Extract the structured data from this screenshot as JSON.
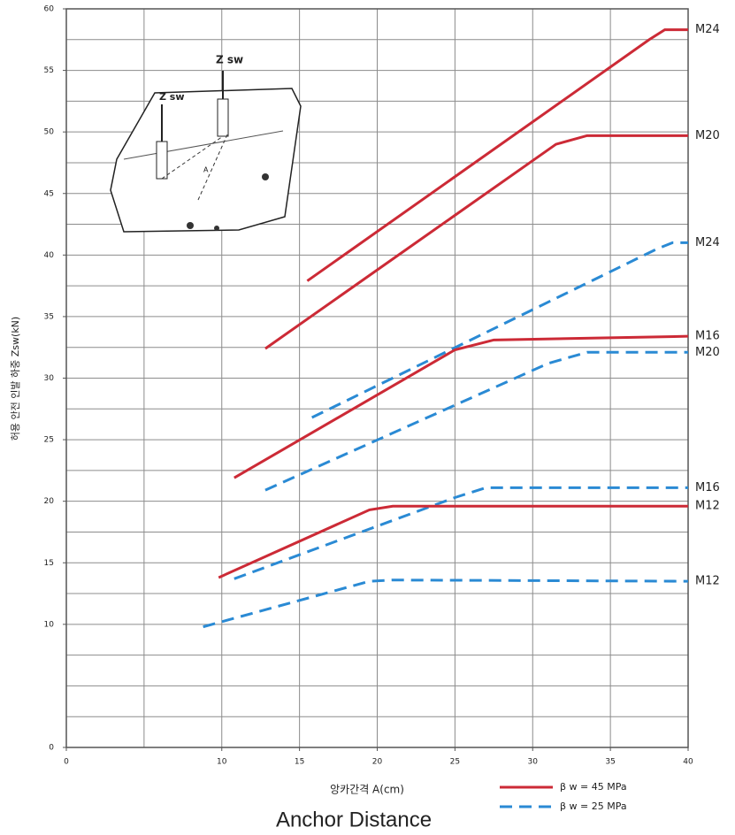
{
  "chart_data": {
    "type": "line",
    "ylabel": "허용 안전 인발 하중 Zsw(kN)",
    "xlabel": "앙카간격 A(cm)",
    "subtitle": "Anchor Distance",
    "xlim": [
      0,
      40
    ],
    "ylim": [
      0,
      60
    ],
    "xticks": [
      0,
      10,
      15,
      20,
      25,
      30,
      35,
      40
    ],
    "yticks": [
      0,
      10,
      15,
      20,
      25,
      30,
      35,
      40,
      45,
      50,
      55,
      60
    ],
    "xgrid": [
      5,
      10,
      15,
      20,
      25,
      30,
      35
    ],
    "ygrid": [
      2.5,
      5,
      7.5,
      10,
      12.5,
      15,
      17.5,
      20,
      22.5,
      25,
      27.5,
      30,
      32.5,
      35,
      37.5,
      40,
      42.5,
      45,
      47.5,
      50,
      52.5,
      55,
      57.5
    ],
    "grid": true,
    "legend": [
      {
        "label": "β w = 45 MPa",
        "color": "#cc2a36",
        "dashed": false
      },
      {
        "label": "β w = 25 MPa",
        "color": "#2a8ad4",
        "dashed": true
      }
    ],
    "series": [
      {
        "name": "M24",
        "color": "#cc2a36",
        "dashed": false,
        "x": [
          15.5,
          37.5,
          38.5,
          40
        ],
        "values": [
          37.9,
          57.5,
          58.3,
          58.3
        ]
      },
      {
        "name": "M20",
        "color": "#cc2a36",
        "dashed": false,
        "x": [
          12.8,
          31.5,
          33.5,
          40
        ],
        "values": [
          32.4,
          49,
          49.7,
          49.7
        ]
      },
      {
        "name": "M24",
        "color": "#2a8ad4",
        "dashed": true,
        "x": [
          15.8,
          38,
          39,
          40
        ],
        "values": [
          26.8,
          40.5,
          41,
          41
        ]
      },
      {
        "name": "M16",
        "color": "#cc2a36",
        "dashed": false,
        "x": [
          10.8,
          25,
          27.5,
          40
        ],
        "values": [
          21.9,
          32.3,
          33.1,
          33.4
        ]
      },
      {
        "name": "M20",
        "color": "#2a8ad4",
        "dashed": true,
        "x": [
          12.8,
          31,
          33.5,
          40
        ],
        "values": [
          20.9,
          31.2,
          32.1,
          32.1
        ]
      },
      {
        "name": "M16",
        "color": "#2a8ad4",
        "dashed": true,
        "x": [
          10.8,
          25,
          27,
          40
        ],
        "values": [
          13.7,
          20.3,
          21.1,
          21.1
        ]
      },
      {
        "name": "M12",
        "color": "#cc2a36",
        "dashed": false,
        "x": [
          9.8,
          19.5,
          21,
          40
        ],
        "values": [
          13.8,
          19.3,
          19.6,
          19.6
        ]
      },
      {
        "name": "M12",
        "color": "#2a8ad4",
        "dashed": true,
        "x": [
          8.8,
          19.5,
          21,
          40
        ],
        "values": [
          9.8,
          13.5,
          13.6,
          13.5
        ]
      }
    ],
    "inset": {
      "labels": [
        "Z sw",
        "Z sw",
        "A"
      ]
    }
  }
}
